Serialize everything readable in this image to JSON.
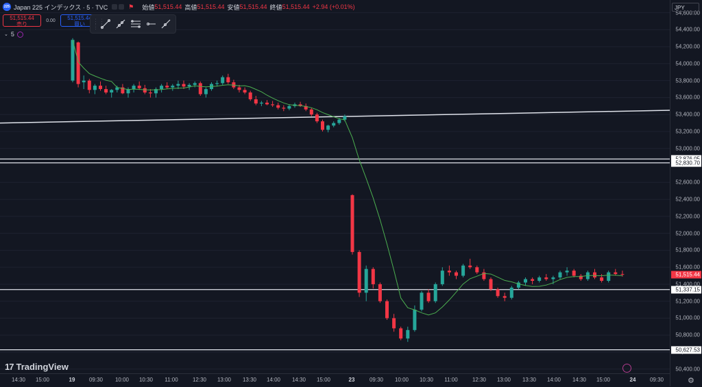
{
  "legend": {
    "symbol_badge": "225",
    "title": "Japan 225 インデックス · 5 · TVC",
    "open_label": "始値",
    "open": "51,515.44",
    "high_label": "高値",
    "high": "51,515.44",
    "low_label": "安値",
    "low": "51,515.44",
    "close_label": "終値",
    "close": "51,515.44",
    "change": "+2.94 (+0.01%)"
  },
  "trade": {
    "sell_price": "51,515.44",
    "sell_label": "売り",
    "spread": "0.00",
    "buy_price": "51,515.44",
    "buy_label": "買い"
  },
  "interval": {
    "label": "5"
  },
  "currency": "JPY",
  "brand": "TradingView",
  "colors": {
    "up": "#26a69a",
    "down": "#f23645",
    "background": "#131722",
    "ma": "#4caf50"
  },
  "icons": [
    "symbol-logo-icon",
    "trend-line-icon",
    "ray-icon",
    "parallel-channel-icon",
    "horizontal-ray-icon",
    "extended-line-icon",
    "settings-gear-icon",
    "replay-icon"
  ],
  "chart_data": {
    "type": "candlestick",
    "yaxis": {
      "ticks": [
        "54,600.00",
        "54,400.00",
        "54,200.00",
        "54,000.00",
        "53,800.00",
        "53,600.00",
        "53,400.00",
        "53,200.00",
        "53,000.00",
        "52,600.00",
        "52,400.00",
        "52,200.00",
        "52,000.00",
        "51,800.00",
        "51,600.00",
        "51,400.00",
        "51,200.00",
        "51,000.00",
        "50,800.00",
        "50,600.00",
        "50,400.00"
      ],
      "range": [
        50350,
        54750
      ]
    },
    "xaxis": {
      "ticks": [
        "14:30",
        "15:00",
        "19",
        "09:30",
        "10:00",
        "10:30",
        "11:00",
        "12:30",
        "13:00",
        "13:30",
        "14:00",
        "14:30",
        "15:00",
        "23",
        "09:30",
        "10:00",
        "10:30",
        "11:00",
        "12:30",
        "13:00",
        "13:30",
        "14:00",
        "14:30",
        "15:00",
        "24",
        "09:30"
      ],
      "bold": [
        "19",
        "23",
        "24"
      ]
    },
    "price_labels": [
      {
        "value": 52876.05,
        "text": "52,876.05",
        "style": "white"
      },
      {
        "value": 52830.7,
        "text": "52,830.70",
        "style": "white"
      },
      {
        "value": 51515.44,
        "text": "51,515.44",
        "style": "red"
      },
      {
        "value": 51337.15,
        "text": "51,337.15",
        "style": "white"
      },
      {
        "value": 50627.53,
        "text": "50,627.53",
        "style": "white"
      }
    ],
    "horizontal_lines": [
      52876.05,
      52830.7,
      51337.15,
      50627.53
    ],
    "trend_line": {
      "from": 53300,
      "to": 53450
    },
    "candles_day1": [
      [
        53800,
        54300,
        53780,
        54280
      ],
      [
        54250,
        54260,
        53720,
        53760
      ],
      [
        53780,
        53860,
        53700,
        53800
      ],
      [
        53800,
        53820,
        53650,
        53690
      ],
      [
        53690,
        53760,
        53640,
        53740
      ],
      [
        53740,
        53790,
        53680,
        53700
      ],
      [
        53700,
        53740,
        53640,
        53660
      ],
      [
        53660,
        53700,
        53600,
        53690
      ],
      [
        53690,
        53740,
        53660,
        53720
      ],
      [
        53720,
        53760,
        53640,
        53650
      ],
      [
        53650,
        53720,
        53600,
        53700
      ],
      [
        53700,
        53760,
        53660,
        53740
      ],
      [
        53740,
        53790,
        53690,
        53710
      ],
      [
        53710,
        53750,
        53640,
        53660
      ],
      [
        53660,
        53700,
        53600,
        53650
      ],
      [
        53650,
        53720,
        53600,
        53700
      ],
      [
        53700,
        53760,
        53660,
        53740
      ],
      [
        53740,
        53780,
        53700,
        53720
      ],
      [
        53720,
        53760,
        53680,
        53740
      ],
      [
        53740,
        53800,
        53700,
        53760
      ],
      [
        53760,
        53800,
        53700,
        53730
      ],
      [
        53730,
        53770,
        53690,
        53750
      ],
      [
        53750,
        53790,
        53720,
        53770
      ],
      [
        53770,
        53790,
        53620,
        53640
      ],
      [
        53640,
        53720,
        53600,
        53700
      ],
      [
        53700,
        53780,
        53680,
        53760
      ],
      [
        53760,
        53800,
        53730,
        53770
      ],
      [
        53770,
        53860,
        53750,
        53840
      ],
      [
        53840,
        53880,
        53760,
        53780
      ],
      [
        53780,
        53810,
        53700,
        53720
      ],
      [
        53720,
        53750,
        53660,
        53690
      ],
      [
        53690,
        53720,
        53640,
        53660
      ],
      [
        53660,
        53680,
        53560,
        53580
      ],
      [
        53580,
        53620,
        53510,
        53530
      ],
      [
        53530,
        53560,
        53500,
        53540
      ],
      [
        53540,
        53570,
        53510,
        53520
      ],
      [
        53520,
        53560,
        53490,
        53510
      ],
      [
        53510,
        53540,
        53460,
        53480
      ],
      [
        53480,
        53510,
        53440,
        53470
      ],
      [
        53470,
        53520,
        53450,
        53500
      ],
      [
        53500,
        53540,
        53480,
        53520
      ],
      [
        53520,
        53550,
        53490,
        53500
      ],
      [
        53500,
        53530,
        53440,
        53460
      ],
      [
        53460,
        53480,
        53380,
        53400
      ],
      [
        53400,
        53420,
        53300,
        53320
      ],
      [
        53320,
        53340,
        53200,
        53220
      ],
      [
        53220,
        53280,
        53190,
        53270
      ],
      [
        53270,
        53320,
        53250,
        53300
      ],
      [
        53300,
        53360,
        53280,
        53340
      ],
      [
        53340,
        53400,
        53320,
        53380
      ]
    ],
    "candles_day2": [
      [
        52450,
        52460,
        51750,
        51780
      ],
      [
        51780,
        51800,
        51250,
        51300
      ],
      [
        51300,
        51620,
        51200,
        51580
      ],
      [
        51580,
        51600,
        51350,
        51400
      ],
      [
        51400,
        51420,
        51180,
        51200
      ],
      [
        51200,
        51220,
        50980,
        51000
      ],
      [
        51000,
        51050,
        50840,
        50880
      ],
      [
        50880,
        50900,
        50740,
        50760
      ],
      [
        50760,
        50900,
        50720,
        50860
      ],
      [
        50860,
        51150,
        50840,
        51100
      ],
      [
        51100,
        51320,
        51080,
        51300
      ],
      [
        51300,
        51340,
        51180,
        51200
      ],
      [
        51200,
        51420,
        51180,
        51400
      ],
      [
        51400,
        51600,
        51380,
        51560
      ],
      [
        51560,
        51620,
        51500,
        51540
      ],
      [
        51540,
        51560,
        51460,
        51500
      ],
      [
        51500,
        51640,
        51480,
        51620
      ],
      [
        51620,
        51700,
        51580,
        51600
      ],
      [
        51600,
        51620,
        51520,
        51540
      ],
      [
        51540,
        51580,
        51440,
        51460
      ],
      [
        51460,
        51480,
        51320,
        51340
      ],
      [
        51340,
        51360,
        51240,
        51260
      ],
      [
        51260,
        51300,
        51200,
        51240
      ],
      [
        51240,
        51380,
        51220,
        51360
      ],
      [
        51360,
        51440,
        51340,
        51420
      ],
      [
        51420,
        51480,
        51380,
        51460
      ],
      [
        51460,
        51480,
        51400,
        51440
      ],
      [
        51440,
        51500,
        51420,
        51480
      ],
      [
        51480,
        51520,
        51440,
        51460
      ],
      [
        51460,
        51500,
        51400,
        51480
      ],
      [
        51480,
        51560,
        51460,
        51540
      ],
      [
        51540,
        51600,
        51500,
        51560
      ],
      [
        51560,
        51580,
        51480,
        51500
      ],
      [
        51500,
        51520,
        51440,
        51460
      ],
      [
        51460,
        51560,
        51440,
        51540
      ],
      [
        51540,
        51580,
        51460,
        51480
      ],
      [
        51480,
        51520,
        51420,
        51440
      ],
      [
        51440,
        51560,
        51420,
        51540
      ],
      [
        51540,
        51580,
        51500,
        51520
      ],
      [
        51520,
        51560,
        51490,
        51515
      ]
    ]
  }
}
